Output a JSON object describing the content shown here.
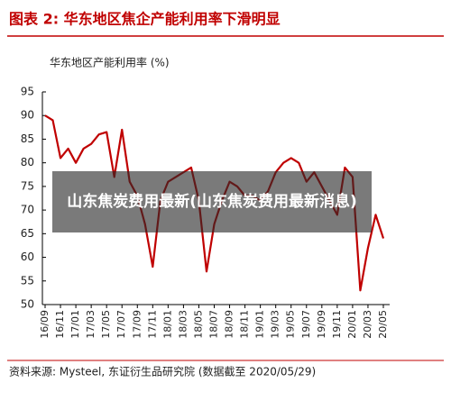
{
  "chart_data": {
    "type": "line",
    "title": "图表 2: 华东地区焦企产能利用率下滑明显",
    "subtitle": "华东地区产能利用率 (%)",
    "source": "资料来源: Mysteel, 东证衍生品研究院 (数据截至 2020/05/29)",
    "categories": [
      "16/09",
      null,
      "16/11",
      null,
      "17/01",
      null,
      "17/03",
      null,
      "17/05",
      null,
      "17/07",
      null,
      "17/09",
      null,
      "17/11",
      null,
      "18/01",
      null,
      "18/03",
      null,
      "18/05",
      null,
      "18/07",
      null,
      "18/09",
      null,
      "18/11",
      null,
      "19/01",
      null,
      "19/03",
      null,
      "19/05",
      null,
      "19/07",
      null,
      "19/09",
      null,
      "19/11",
      null,
      "20/01",
      null,
      "20/03",
      null,
      "20/05"
    ],
    "values": [
      90,
      89,
      81,
      83,
      80,
      83,
      84,
      86,
      86.5,
      77,
      87,
      76,
      73,
      67,
      58,
      72,
      76,
      77,
      78,
      79,
      72,
      57,
      67,
      72,
      76,
      75,
      73,
      73,
      72,
      74,
      78,
      80,
      81,
      80,
      76,
      78,
      75,
      72,
      69,
      79,
      77,
      53,
      62,
      69,
      64
    ],
    "color": "#c00000",
    "ylim": [
      50,
      95
    ],
    "yticks": [
      50,
      55,
      60,
      65,
      70,
      75,
      80,
      85,
      90,
      95
    ],
    "grid": false
  },
  "overlay": {
    "text": "山东焦炭费用最新(山东焦炭费用最新消息)"
  }
}
